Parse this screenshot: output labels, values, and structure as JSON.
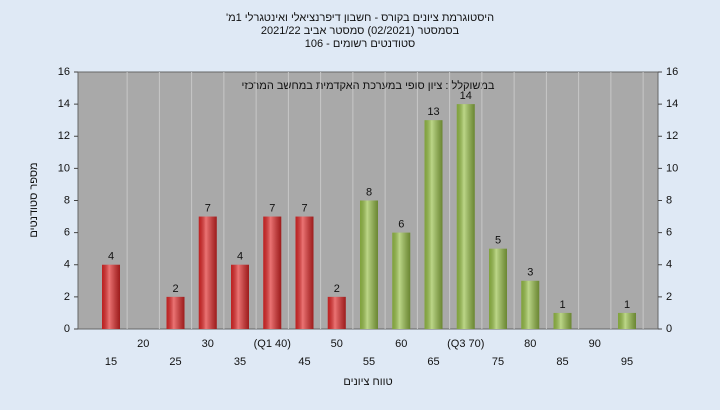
{
  "chart_data": {
    "type": "bar",
    "title": "'היסטוגרמת ציונים בקורס - חשבון דיפרנציאלי ואינטגרלי 1מ",
    "subtitle": "בסמסטר (02/2021) סמסטר אביב 2021/22",
    "subtitle2": "סטודנטים רשומים - 106",
    "annotation": "במשוקלל : ציון סופי במערכת האקדמית במחשב המרכזי",
    "x_label": "טווח ציונים",
    "y_label": "מספר סטודנטים",
    "categories": [
      "15",
      "20",
      "25",
      "30",
      "35",
      "(Q1 40)",
      "45",
      "50",
      "55",
      "60",
      "65",
      "(Q3 70)",
      "75",
      "80",
      "85",
      "90",
      "95"
    ],
    "values": [
      4,
      0,
      2,
      7,
      4,
      7,
      7,
      2,
      8,
      6,
      13,
      14,
      5,
      3,
      1,
      0,
      1
    ],
    "colors": [
      "#e02828",
      "#e02828",
      "#e02828",
      "#e02828",
      "#e02828",
      "#e02828",
      "#e02828",
      "#e02828",
      "#98c048",
      "#98c048",
      "#98c048",
      "#98c048",
      "#98c048",
      "#98c048",
      "#98c048",
      "#98c048",
      "#98c048"
    ],
    "ylim": [
      0,
      16
    ],
    "yticks": [
      0,
      2,
      4,
      6,
      8,
      10,
      12,
      14,
      16
    ],
    "grid": true
  }
}
